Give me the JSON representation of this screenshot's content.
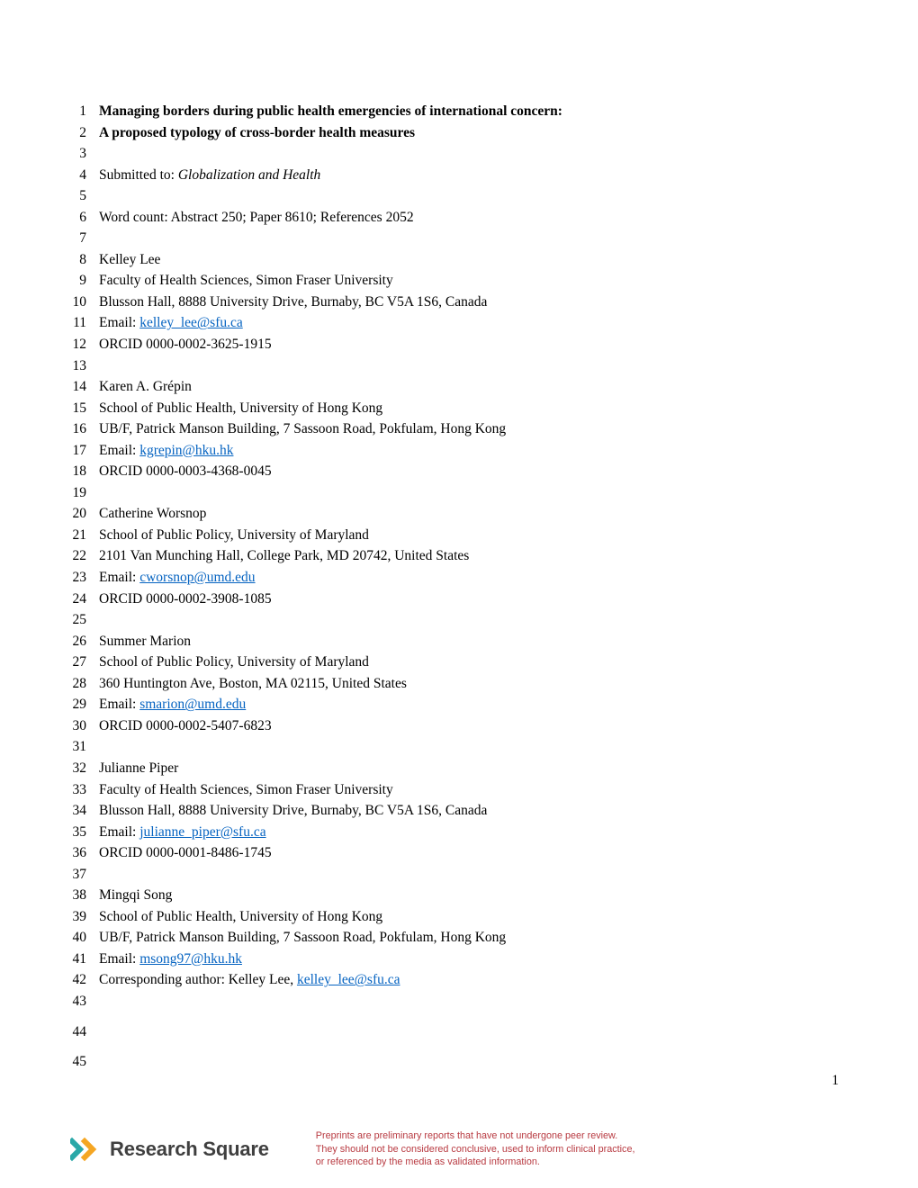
{
  "page_number": "1",
  "lines": [
    {
      "n": "1",
      "bold": true,
      "text": "Managing borders during public health emergencies of international concern:"
    },
    {
      "n": "2",
      "bold": true,
      "text": "A proposed typology of cross-border health measures"
    },
    {
      "n": "3",
      "text": ""
    },
    {
      "n": "4",
      "prefix": "Submitted to:  ",
      "italic_text": "Globalization and Health"
    },
    {
      "n": "5",
      "text": ""
    },
    {
      "n": "6",
      "text": "Word count:  Abstract 250; Paper 8610; References 2052"
    },
    {
      "n": "7",
      "text": ""
    },
    {
      "n": "8",
      "text": "Kelley Lee"
    },
    {
      "n": "9",
      "text": "Faculty of Health Sciences, Simon Fraser University"
    },
    {
      "n": "10",
      "text": "Blusson Hall, 8888 University Drive, Burnaby, BC  V5A 1S6, Canada"
    },
    {
      "n": "11",
      "prefix": "Email:  ",
      "email": "kelley_lee@sfu.ca"
    },
    {
      "n": "12",
      "text": "ORCID 0000-0002-3625-1915"
    },
    {
      "n": "13",
      "text": ""
    },
    {
      "n": "14",
      "text": "Karen A. Grépin"
    },
    {
      "n": "15",
      "text": "School of Public Health, University of Hong Kong"
    },
    {
      "n": "16",
      "text": "UB/F, Patrick Manson Building, 7 Sassoon Road, Pokfulam, Hong Kong"
    },
    {
      "n": "17",
      "prefix": "Email:  ",
      "email": "kgrepin@hku.hk"
    },
    {
      "n": "18",
      "text": "ORCID 0000-0003-4368-0045"
    },
    {
      "n": "19",
      "text": ""
    },
    {
      "n": "20",
      "text": "Catherine Worsnop"
    },
    {
      "n": "21",
      "text": "School of Public Policy, University of Maryland"
    },
    {
      "n": "22",
      "text": "2101 Van Munching Hall, College Park, MD 20742, United States"
    },
    {
      "n": "23",
      "prefix": "Email:  ",
      "email": "cworsnop@umd.edu"
    },
    {
      "n": "24",
      "text": "ORCID 0000-0002-3908-1085"
    },
    {
      "n": "25",
      "text": ""
    },
    {
      "n": "26",
      "text": "Summer Marion"
    },
    {
      "n": "27",
      "text": "School of Public Policy, University of Maryland"
    },
    {
      "n": "28",
      "text": "360 Huntington Ave, Boston, MA 02115, United States"
    },
    {
      "n": "29",
      "prefix": "Email:  ",
      "email": "smarion@umd.edu"
    },
    {
      "n": "30",
      "text": "ORCID 0000-0002-5407-6823"
    },
    {
      "n": "31",
      "text": ""
    },
    {
      "n": "32",
      "text": "Julianne Piper"
    },
    {
      "n": "33",
      "text": "Faculty of Health Sciences, Simon Fraser University"
    },
    {
      "n": "34",
      "text": "Blusson Hall, 8888 University Drive, Burnaby, BC  V5A 1S6, Canada"
    },
    {
      "n": "35",
      "prefix": "Email:  ",
      "email": "julianne_piper@sfu.ca"
    },
    {
      "n": "36",
      "text": "ORCID 0000-0001-8486-1745"
    },
    {
      "n": "37",
      "text": ""
    },
    {
      "n": "38",
      "text": "Mingqi Song"
    },
    {
      "n": "39",
      "text": "School of Public Health, University of Hong Kong"
    },
    {
      "n": "40",
      "text": "UB/F, Patrick Manson Building, 7 Sassoon Road, Pokfulam, Hong Kong"
    },
    {
      "n": "41",
      "prefix": "Email:  ",
      "email": "msong97@hku.hk"
    },
    {
      "n": "42",
      "prefix": "Corresponding author:  Kelley Lee, ",
      "email": "kelley_lee@sfu.ca"
    },
    {
      "n": "43",
      "text": ""
    },
    {
      "n": "44",
      "text": "",
      "gap": true
    },
    {
      "n": "45",
      "text": "",
      "gap": true
    }
  ],
  "footer": {
    "logo_text": "Research Square",
    "disclaimer_l1": "Preprints are preliminary reports that have not undergone peer review.",
    "disclaimer_l2": "They should not be considered conclusive, used to inform clinical practice,",
    "disclaimer_l3": "or referenced by the media as validated information."
  },
  "colors": {
    "link": "#0563c1",
    "disclaimer": "#b83a41",
    "logo_chevron_left": "#2aa8a8",
    "logo_chevron_right": "#f5a623"
  }
}
